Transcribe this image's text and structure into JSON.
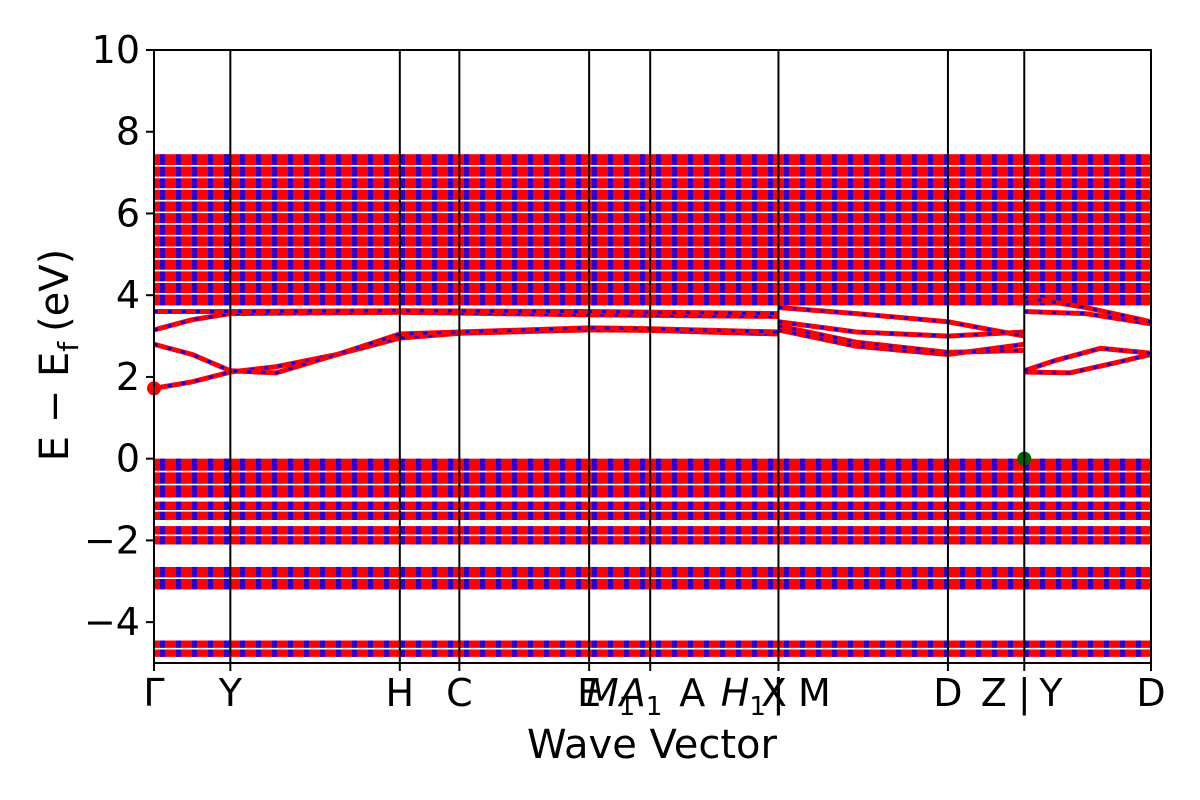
{
  "chart_data": {
    "type": "line",
    "title": "",
    "xlabel": "Wave Vector",
    "ylabel": "E − E",
    "ylabel_sub": "f",
    "ylabel_unit": "(eV)",
    "ylim": [
      -5,
      10
    ],
    "yticks": [
      -4,
      -2,
      0,
      2,
      4,
      6,
      8,
      10
    ],
    "ytick_labels": [
      "−4",
      "−2",
      "0",
      "2",
      "4",
      "6",
      "8",
      "10"
    ],
    "xlim": [
      0,
      13.06
    ],
    "kpoint_positions": [
      0,
      1.0,
      3.22,
      4.0,
      5.7,
      6.5,
      8.18,
      10.4,
      11.4,
      13.06
    ],
    "kpoint_labels": [
      {
        "text": "Γ",
        "k": 0.0
      },
      {
        "text": "Y",
        "k": 1.0
      },
      {
        "text": "H",
        "k": 3.22
      },
      {
        "text": "C",
        "k": 4.0
      },
      {
        "text": "E",
        "k": 5.7
      },
      {
        "text": "M",
        "k": 5.98,
        "italic": true,
        "sub": "1"
      },
      {
        "text": "A",
        "k": 6.38,
        "italic": true,
        "sub": "1"
      },
      {
        "text": "A",
        "k": 7.05
      },
      {
        "text": "H",
        "k": 7.72,
        "italic": true,
        "sub": "1"
      },
      {
        "text": "X",
        "k": 8.12
      },
      {
        "text": "|",
        "k": 8.18
      },
      {
        "text": "M",
        "k": 8.65
      },
      {
        "text": "D",
        "k": 10.4
      },
      {
        "text": "Z",
        "k": 11.0
      },
      {
        "text": "|",
        "k": 11.4
      },
      {
        "text": "Y",
        "k": 11.75
      },
      {
        "text": "D",
        "k": 13.06
      }
    ],
    "series": [
      {
        "values": [
          {
            "k": 0,
            "e": 1.72
          },
          {
            "k": 0.5,
            "e": 1.88
          },
          {
            "k": 1.0,
            "e": 2.12
          },
          {
            "k": 1.6,
            "e": 2.25
          },
          {
            "k": 2.4,
            "e": 2.55
          },
          {
            "k": 3.22,
            "e": 2.95
          },
          {
            "k": 4.0,
            "e": 3.07
          },
          {
            "k": 5.7,
            "e": 3.15
          },
          {
            "k": 6.5,
            "e": 3.14
          },
          {
            "k": 8.18,
            "e": 3.05
          }
        ]
      },
      {
        "values": [
          {
            "k": 0,
            "e": 2.8
          },
          {
            "k": 0.5,
            "e": 2.55
          },
          {
            "k": 1.0,
            "e": 2.15
          },
          {
            "k": 1.6,
            "e": 2.1
          },
          {
            "k": 2.4,
            "e": 2.55
          },
          {
            "k": 3.22,
            "e": 3.05
          },
          {
            "k": 4.0,
            "e": 3.1
          },
          {
            "k": 5.7,
            "e": 3.2
          },
          {
            "k": 6.5,
            "e": 3.18
          },
          {
            "k": 8.18,
            "e": 3.1
          }
        ]
      },
      {
        "values": [
          {
            "k": 0,
            "e": 3.15
          },
          {
            "k": 0.5,
            "e": 3.4
          },
          {
            "k": 1.0,
            "e": 3.55
          },
          {
            "k": 3.22,
            "e": 3.58
          },
          {
            "k": 5.7,
            "e": 3.52
          },
          {
            "k": 8.18,
            "e": 3.48
          }
        ]
      },
      {
        "values": [
          {
            "k": 0,
            "e": 3.6
          },
          {
            "k": 1.0,
            "e": 3.6
          },
          {
            "k": 3.22,
            "e": 3.62
          },
          {
            "k": 5.7,
            "e": 3.6
          },
          {
            "k": 8.18,
            "e": 3.55
          }
        ]
      },
      {
        "values": [
          {
            "k": 8.18,
            "e": 3.15
          },
          {
            "k": 9.2,
            "e": 2.75
          },
          {
            "k": 10.4,
            "e": 2.55
          },
          {
            "k": 11.4,
            "e": 2.8
          }
        ]
      },
      {
        "values": [
          {
            "k": 8.18,
            "e": 3.25
          },
          {
            "k": 9.2,
            "e": 2.85
          },
          {
            "k": 10.4,
            "e": 2.6
          },
          {
            "k": 11.4,
            "e": 2.65
          }
        ]
      },
      {
        "values": [
          {
            "k": 8.18,
            "e": 3.35
          },
          {
            "k": 9.2,
            "e": 3.1
          },
          {
            "k": 10.4,
            "e": 3.0
          },
          {
            "k": 11.4,
            "e": 3.1
          }
        ]
      },
      {
        "values": [
          {
            "k": 8.18,
            "e": 3.7
          },
          {
            "k": 9.2,
            "e": 3.55
          },
          {
            "k": 10.4,
            "e": 3.35
          },
          {
            "k": 11.4,
            "e": 3.0
          }
        ]
      },
      {
        "values": [
          {
            "k": 11.4,
            "e": 2.12
          },
          {
            "k": 12.0,
            "e": 2.1
          },
          {
            "k": 12.6,
            "e": 2.35
          },
          {
            "k": 13.06,
            "e": 2.55
          }
        ]
      },
      {
        "values": [
          {
            "k": 11.4,
            "e": 2.15
          },
          {
            "k": 11.8,
            "e": 2.4
          },
          {
            "k": 12.4,
            "e": 2.7
          },
          {
            "k": 13.06,
            "e": 2.58
          }
        ]
      },
      {
        "values": [
          {
            "k": 11.4,
            "e": 3.6
          },
          {
            "k": 12.2,
            "e": 3.55
          },
          {
            "k": 13.06,
            "e": 3.3
          }
        ]
      },
      {
        "values": [
          {
            "k": 11.4,
            "e": 3.95
          },
          {
            "k": 12.2,
            "e": 3.7
          },
          {
            "k": 13.06,
            "e": 3.35
          }
        ]
      }
    ],
    "band_blocks": [
      {
        "k0": 0,
        "k1": 13.06,
        "e0": -4.85,
        "e1": -4.45
      },
      {
        "k0": 0,
        "k1": 13.06,
        "e0": -3.2,
        "e1": -2.65
      },
      {
        "k0": 0,
        "k1": 13.06,
        "e0": -2.1,
        "e1": -1.65
      },
      {
        "k0": 0,
        "k1": 13.06,
        "e0": -1.5,
        "e1": -1.05
      },
      {
        "k0": 0,
        "k1": 13.06,
        "e0": -0.95,
        "e1": 0.0
      },
      {
        "k0": 0,
        "k1": 13.06,
        "e0": 3.75,
        "e1": 7.45
      }
    ],
    "markers": [
      {
        "k": 0.0,
        "e": 1.72,
        "color": "#ff0000"
      },
      {
        "k": 11.4,
        "e": 0.0,
        "color": "#006400"
      }
    ],
    "band_color": "#ff0000",
    "band_dash_color": "#0000ff",
    "grid": false
  }
}
